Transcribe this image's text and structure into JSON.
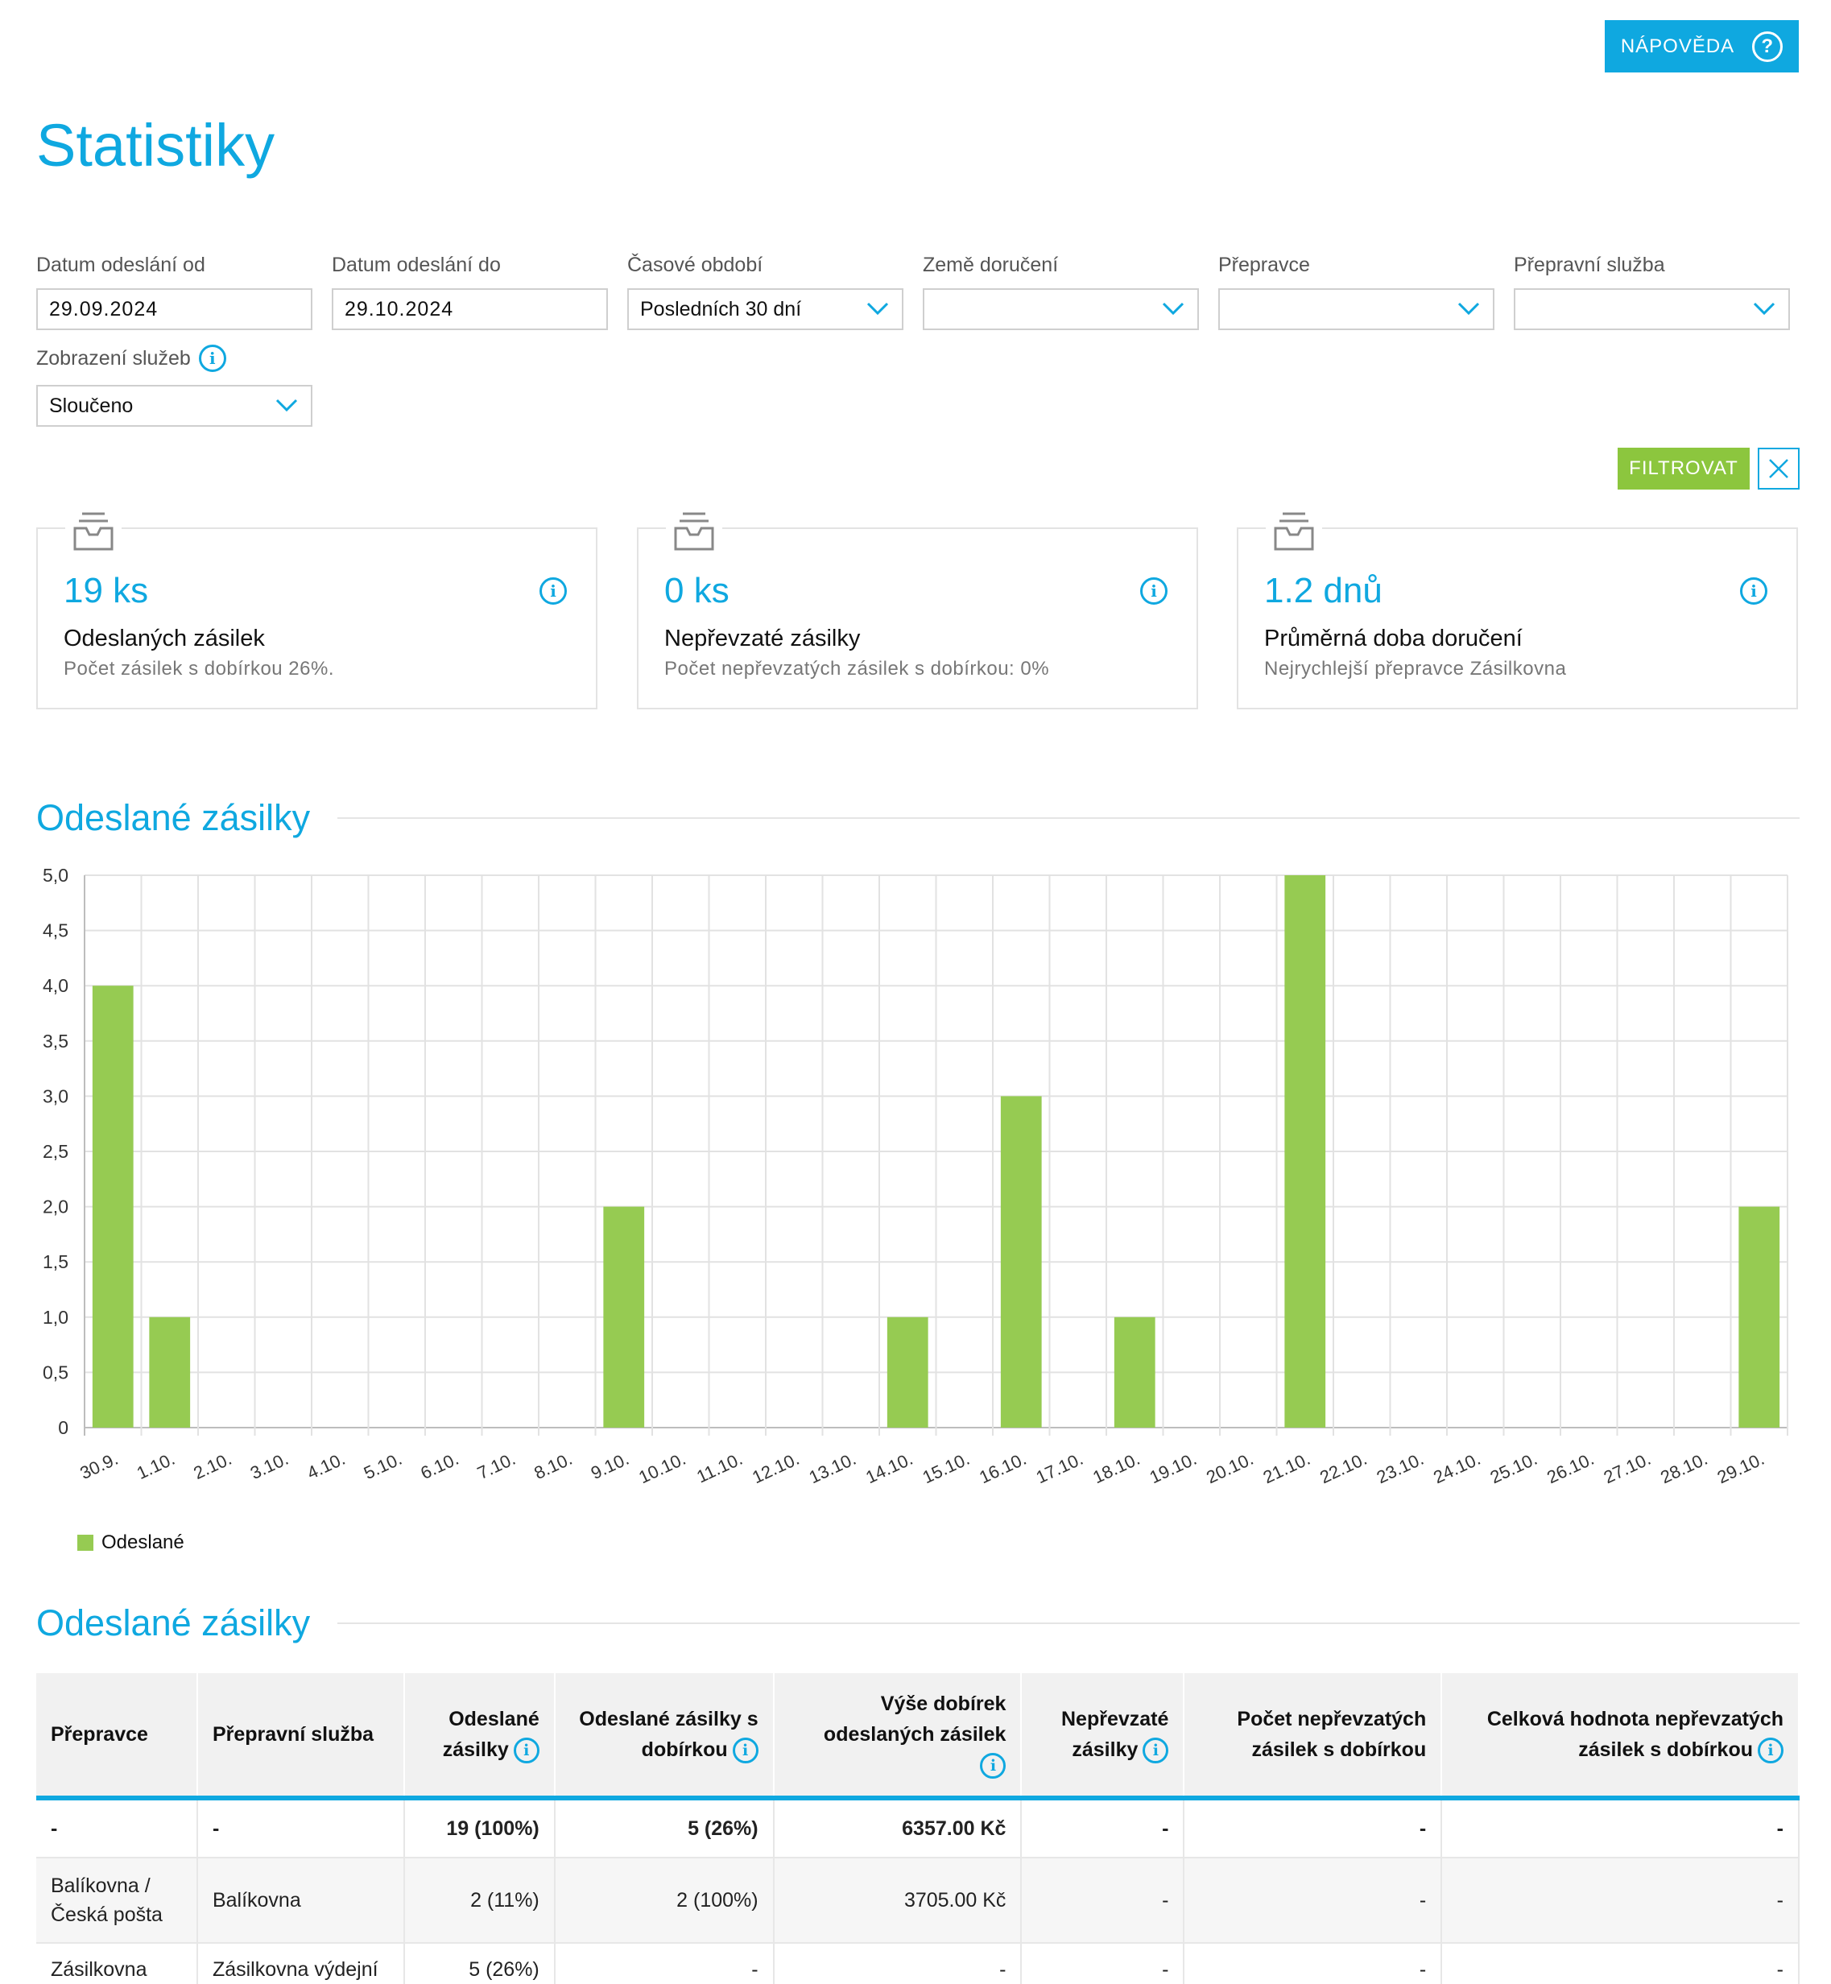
{
  "header": {
    "help_label": "NÁPOVĚDA",
    "title": "Statistiky"
  },
  "filters": {
    "date_from": {
      "label": "Datum odeslání od",
      "value": "29.09.2024"
    },
    "date_to": {
      "label": "Datum odeslání do",
      "value": "29.10.2024"
    },
    "period": {
      "label": "Časové období",
      "value": "Posledních 30 dní"
    },
    "country": {
      "label": "Země doručení",
      "value": ""
    },
    "carrier": {
      "label": "Přepravce",
      "value": ""
    },
    "service": {
      "label": "Přepravní služba",
      "value": ""
    },
    "display": {
      "label": "Zobrazení služeb",
      "value": "Sloučeno"
    },
    "filter_label": "FILTROVAT"
  },
  "cards": [
    {
      "value": "19 ks",
      "title": "Odeslaných zásilek",
      "subtitle": "Počet zásilek s dobírkou 26%."
    },
    {
      "value": "0 ks",
      "title": "Nepřevzaté zásilky",
      "subtitle": "Počet nepřevzatých zásilek s dobírkou: 0%"
    },
    {
      "value": "1.2 dnů",
      "title": "Průměrná doba doručení",
      "subtitle": "Nejrychlejší přepravce Zásilkovna"
    }
  ],
  "chart_section_title": "Odeslané zásilky",
  "table_section_title": "Odeslané zásilky",
  "chart_data": {
    "type": "bar",
    "categories": [
      "30.9.",
      "1.10.",
      "2.10.",
      "3.10.",
      "4.10.",
      "5.10.",
      "6.10.",
      "7.10.",
      "8.10.",
      "9.10.",
      "10.10.",
      "11.10.",
      "12.10.",
      "13.10.",
      "14.10.",
      "15.10.",
      "16.10.",
      "17.10.",
      "18.10.",
      "19.10.",
      "20.10.",
      "21.10.",
      "22.10.",
      "23.10.",
      "24.10.",
      "25.10.",
      "26.10.",
      "27.10.",
      "28.10.",
      "29.10."
    ],
    "series": [
      {
        "name": "Odeslané",
        "values": [
          4,
          1,
          0,
          0,
          0,
          0,
          0,
          0,
          0,
          2,
          0,
          0,
          0,
          0,
          1,
          0,
          3,
          0,
          1,
          0,
          0,
          5,
          0,
          0,
          0,
          0,
          0,
          0,
          0,
          2
        ]
      }
    ],
    "yticks": [
      "0",
      "0,5",
      "1,0",
      "1,5",
      "2,0",
      "2,5",
      "3,0",
      "3,5",
      "4,0",
      "4,5",
      "5,0"
    ],
    "ylim": [
      0,
      5
    ],
    "grid": true,
    "legend": "bottom-left",
    "bar_color": "#96cb52"
  },
  "table": {
    "headers": {
      "carrier": "Přepravce",
      "service": "Přepravní služba",
      "sent_1": "Odeslané",
      "sent_2": "zásilky",
      "cod_1": "Odeslané zásilky s",
      "cod_2": "dobírkou",
      "amount_1": "Výše dobírek",
      "amount_2": "odeslaných zásilek",
      "unclaimed_1": "Nepřevzaté",
      "unclaimed_2": "zásilky",
      "unclaimed_cod_1": "Počet nepřevzatých",
      "unclaimed_cod_2": "zásilek s dobírkou",
      "unclaimed_value_1": "Celková hodnota nepřevzatých",
      "unclaimed_value_2": "zásilek s dobírkou"
    },
    "rows": [
      {
        "carrier": "-",
        "service": "-",
        "sent": "19 (100%)",
        "cod": "5 (26%)",
        "amount": "6357.00 Kč",
        "unclaimed": "-",
        "unclaimed_cod": "-",
        "unclaimed_value": "-"
      },
      {
        "carrier_1": "Balíkovna /",
        "carrier_2": "Česká pošta",
        "service": "Balíkovna",
        "sent": "2 (11%)",
        "cod": "2 (100%)",
        "amount": "3705.00 Kč",
        "unclaimed": "-",
        "unclaimed_cod": "-",
        "unclaimed_value": "-"
      },
      {
        "carrier": "Zásilkovna",
        "service": "Zásilkovna výdejní",
        "sent": "5 (26%)",
        "cod": "-",
        "amount": "-",
        "unclaimed": "-",
        "unclaimed_cod": "-",
        "unclaimed_value": "-"
      }
    ]
  }
}
